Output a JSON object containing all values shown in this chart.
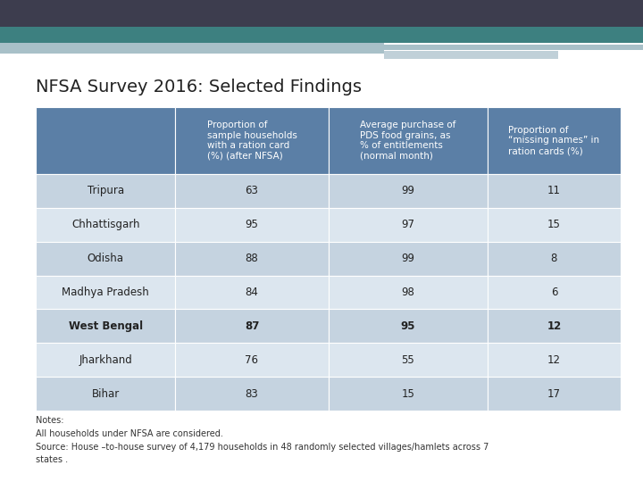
{
  "title": "NFSA Survey 2016: Selected Findings",
  "header_bg": "#5b7fa6",
  "header_text_color": "#ffffff",
  "row_bg_dark": "#c5d3e0",
  "row_bg_light": "#dce6ef",
  "bold_row": "West Bengal",
  "col_headers": [
    "",
    "Proportion of\nsample households\nwith a ration card\n(%) (after NFSA)",
    "Average purchase of\nPDS food grains, as\n% of entitlements\n(normal month)",
    "Proportion of\n“missing names” in\nration cards (%)"
  ],
  "rows": [
    [
      "Tripura",
      "63",
      "99",
      "11"
    ],
    [
      "Chhattisgarh",
      "95",
      "97",
      "15"
    ],
    [
      "Odisha",
      "88",
      "99",
      "8"
    ],
    [
      "Madhya Pradesh",
      "84",
      "98",
      "6"
    ],
    [
      "West Bengal",
      "87",
      "95",
      "12"
    ],
    [
      "Jharkhand",
      "76",
      "55",
      "12"
    ],
    [
      "Bihar",
      "83",
      "15",
      "17"
    ]
  ],
  "notes": "Notes:\nAll households under NFSA are considered.\nSource: House –to-house survey of 4,179 households in 48 randomly selected villages/hamlets across 7\nstates .",
  "bg_color": "#ffffff",
  "top_dark_bar_color": "#3d3d4e",
  "top_teal_bar_color": "#3d8080",
  "top_light_bar_color1": "#a8c0c8",
  "top_light_bar_color2": "#c0d0d8",
  "title_fontsize": 14,
  "header_fontsize": 7.5,
  "cell_fontsize": 8.5,
  "notes_fontsize": 7.0
}
